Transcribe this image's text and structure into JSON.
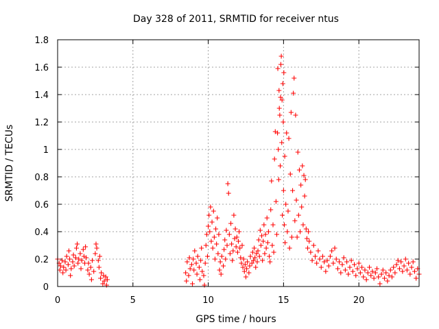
{
  "chart_data": {
    "type": "scatter",
    "title": "Day 328 of 2011, SRMTID for receiver ntus",
    "xlabel": "GPS time / hours",
    "ylabel": "SRMTID / TECUs",
    "xlim": [
      0,
      24
    ],
    "ylim": [
      0,
      1.8
    ],
    "xticks": [
      0,
      5,
      10,
      15,
      20
    ],
    "xtick_labels": [
      "0",
      "5",
      "10",
      "15",
      "20"
    ],
    "yticks": [
      0,
      0.2,
      0.4,
      0.6,
      0.8,
      1,
      1.2,
      1.4,
      1.6,
      1.8
    ],
    "ytick_labels": [
      "0",
      "0.2",
      "0.4",
      "0.6",
      "0.8",
      "1",
      "1.2",
      "1.4",
      "1.6",
      "1.8"
    ],
    "grid": true,
    "marker": "plus",
    "color": "#ff0000",
    "series": [
      {
        "name": "SRMTID",
        "points": [
          [
            0.0,
            0.2
          ],
          [
            0.1,
            0.17
          ],
          [
            0.15,
            0.12
          ],
          [
            0.2,
            0.15
          ],
          [
            0.3,
            0.19
          ],
          [
            0.35,
            0.1
          ],
          [
            0.4,
            0.14
          ],
          [
            0.5,
            0.18
          ],
          [
            0.55,
            0.12
          ],
          [
            0.6,
            0.22
          ],
          [
            0.7,
            0.16
          ],
          [
            0.75,
            0.26
          ],
          [
            0.8,
            0.2
          ],
          [
            0.85,
            0.08
          ],
          [
            0.9,
            0.13
          ],
          [
            1.0,
            0.18
          ],
          [
            1.05,
            0.23
          ],
          [
            1.1,
            0.15
          ],
          [
            1.2,
            0.21
          ],
          [
            1.25,
            0.28
          ],
          [
            1.3,
            0.31
          ],
          [
            1.35,
            0.17
          ],
          [
            1.4,
            0.2
          ],
          [
            1.5,
            0.24
          ],
          [
            1.55,
            0.13
          ],
          [
            1.6,
            0.19
          ],
          [
            1.7,
            0.27
          ],
          [
            1.75,
            0.22
          ],
          [
            1.8,
            0.17
          ],
          [
            1.85,
            0.29
          ],
          [
            1.9,
            0.21
          ],
          [
            2.0,
            0.12
          ],
          [
            2.05,
            0.17
          ],
          [
            2.1,
            0.09
          ],
          [
            2.2,
            0.14
          ],
          [
            2.25,
            0.05
          ],
          [
            2.3,
            0.19
          ],
          [
            2.4,
            0.11
          ],
          [
            2.5,
            0.24
          ],
          [
            2.55,
            0.31
          ],
          [
            2.6,
            0.28
          ],
          [
            2.7,
            0.19
          ],
          [
            2.75,
            0.14
          ],
          [
            2.8,
            0.22
          ],
          [
            2.85,
            0.06
          ],
          [
            2.9,
            0.1
          ],
          [
            3.0,
            0.02
          ],
          [
            3.05,
            0.08
          ],
          [
            3.1,
            0.04
          ],
          [
            3.2,
            0.07
          ],
          [
            3.25,
            0.01
          ],
          [
            3.3,
            0.05
          ],
          [
            8.5,
            0.1
          ],
          [
            8.55,
            0.04
          ],
          [
            8.6,
            0.18
          ],
          [
            8.7,
            0.08
          ],
          [
            8.75,
            0.21
          ],
          [
            8.8,
            0.13
          ],
          [
            8.9,
            0.16
          ],
          [
            8.95,
            0.02
          ],
          [
            9.0,
            0.2
          ],
          [
            9.05,
            0.12
          ],
          [
            9.1,
            0.26
          ],
          [
            9.2,
            0.17
          ],
          [
            9.25,
            0.09
          ],
          [
            9.3,
            0.22
          ],
          [
            9.4,
            0.14
          ],
          [
            9.45,
            0.05
          ],
          [
            9.5,
            0.19
          ],
          [
            9.55,
            0.28
          ],
          [
            9.6,
            0.11
          ],
          [
            9.7,
            0.08
          ],
          [
            9.75,
            0.01
          ],
          [
            9.8,
            0.17
          ],
          [
            9.85,
            0.3
          ],
          [
            9.9,
            0.38
          ],
          [
            9.95,
            0.22
          ],
          [
            10.0,
            0.44
          ],
          [
            10.05,
            0.52
          ],
          [
            10.1,
            0.4
          ],
          [
            10.15,
            0.58
          ],
          [
            10.2,
            0.33
          ],
          [
            10.25,
            0.47
          ],
          [
            10.3,
            0.28
          ],
          [
            10.35,
            0.55
          ],
          [
            10.4,
            0.36
          ],
          [
            10.45,
            0.2
          ],
          [
            10.5,
            0.42
          ],
          [
            10.55,
            0.31
          ],
          [
            10.6,
            0.5
          ],
          [
            10.65,
            0.24
          ],
          [
            10.7,
            0.38
          ],
          [
            10.75,
            0.12
          ],
          [
            10.8,
            0.18
          ],
          [
            10.85,
            0.09
          ],
          [
            10.9,
            0.22
          ],
          [
            11.0,
            0.15
          ],
          [
            11.05,
            0.27
          ],
          [
            11.1,
            0.34
          ],
          [
            11.15,
            0.2
          ],
          [
            11.2,
            0.41
          ],
          [
            11.25,
            0.3
          ],
          [
            11.3,
            0.75
          ],
          [
            11.35,
            0.68
          ],
          [
            11.4,
            0.38
          ],
          [
            11.45,
            0.24
          ],
          [
            11.5,
            0.46
          ],
          [
            11.55,
            0.31
          ],
          [
            11.6,
            0.19
          ],
          [
            11.65,
            0.26
          ],
          [
            11.7,
            0.52
          ],
          [
            11.75,
            0.35
          ],
          [
            11.8,
            0.42
          ],
          [
            11.85,
            0.29
          ],
          [
            11.9,
            0.36
          ],
          [
            11.95,
            0.25
          ],
          [
            12.0,
            0.33
          ],
          [
            12.05,
            0.4
          ],
          [
            12.1,
            0.28
          ],
          [
            12.15,
            0.21
          ],
          [
            12.2,
            0.17
          ],
          [
            12.25,
            0.3
          ],
          [
            12.3,
            0.14
          ],
          [
            12.35,
            0.2
          ],
          [
            12.4,
            0.11
          ],
          [
            12.45,
            0.16
          ],
          [
            12.5,
            0.07
          ],
          [
            12.55,
            0.13
          ],
          [
            12.6,
            0.18
          ],
          [
            12.7,
            0.1
          ],
          [
            12.75,
            0.15
          ],
          [
            12.8,
            0.22
          ],
          [
            12.9,
            0.17
          ],
          [
            12.95,
            0.25
          ],
          [
            13.0,
            0.19
          ],
          [
            13.05,
            0.28
          ],
          [
            13.1,
            0.21
          ],
          [
            13.15,
            0.14
          ],
          [
            13.2,
            0.24
          ],
          [
            13.25,
            0.18
          ],
          [
            13.3,
            0.26
          ],
          [
            13.35,
            0.34
          ],
          [
            13.4,
            0.22
          ],
          [
            13.45,
            0.41
          ],
          [
            13.5,
            0.3
          ],
          [
            13.55,
            0.37
          ],
          [
            13.6,
            0.19
          ],
          [
            13.65,
            0.33
          ],
          [
            13.7,
            0.45
          ],
          [
            13.75,
            0.24
          ],
          [
            13.8,
            0.38
          ],
          [
            13.85,
            0.28
          ],
          [
            13.9,
            0.5
          ],
          [
            13.95,
            0.32
          ],
          [
            14.0,
            0.4
          ],
          [
            14.05,
            0.22
          ],
          [
            14.1,
            0.18
          ],
          [
            14.15,
            0.56
          ],
          [
            14.2,
            0.77
          ],
          [
            14.25,
            0.3
          ],
          [
            14.3,
            0.45
          ],
          [
            14.35,
            0.25
          ],
          [
            14.4,
            0.93
          ],
          [
            14.45,
            1.13
          ],
          [
            14.5,
            0.62
          ],
          [
            14.55,
            0.38
          ],
          [
            14.6,
            1.12
          ],
          [
            14.62,
            1.59
          ],
          [
            14.65,
            1.0
          ],
          [
            14.68,
            0.78
          ],
          [
            14.7,
            1.43
          ],
          [
            14.72,
            1.3
          ],
          [
            14.75,
            1.25
          ],
          [
            14.78,
            0.88
          ],
          [
            14.8,
            1.38
          ],
          [
            14.82,
            1.62
          ],
          [
            14.85,
            1.68
          ],
          [
            14.88,
            1.05
          ],
          [
            14.9,
            1.36
          ],
          [
            14.92,
            0.52
          ],
          [
            14.95,
            1.48
          ],
          [
            14.98,
            1.2
          ],
          [
            15.0,
            0.7
          ],
          [
            15.02,
            1.56
          ],
          [
            15.05,
            0.45
          ],
          [
            15.08,
            0.95
          ],
          [
            15.1,
            0.32
          ],
          [
            15.15,
            0.6
          ],
          [
            15.2,
            1.12
          ],
          [
            15.25,
            0.4
          ],
          [
            15.3,
            0.55
          ],
          [
            15.35,
            1.08
          ],
          [
            15.4,
            0.28
          ],
          [
            15.45,
            0.82
          ],
          [
            15.5,
            1.27
          ],
          [
            15.55,
            0.36
          ],
          [
            15.6,
            0.7
          ],
          [
            15.65,
            1.41
          ],
          [
            15.7,
            1.52
          ],
          [
            15.75,
            0.48
          ],
          [
            15.8,
            1.25
          ],
          [
            15.85,
            0.63
          ],
          [
            15.9,
            0.36
          ],
          [
            15.95,
            0.98
          ],
          [
            16.0,
            0.52
          ],
          [
            16.05,
            0.85
          ],
          [
            16.1,
            0.4
          ],
          [
            16.15,
            0.74
          ],
          [
            16.2,
            0.58
          ],
          [
            16.25,
            0.88
          ],
          [
            16.3,
            0.45
          ],
          [
            16.35,
            0.81
          ],
          [
            16.4,
            0.66
          ],
          [
            16.45,
            0.78
          ],
          [
            16.5,
            0.42
          ],
          [
            16.55,
            0.35
          ],
          [
            16.6,
            0.28
          ],
          [
            16.65,
            0.4
          ],
          [
            16.7,
            0.33
          ],
          [
            16.8,
            0.25
          ],
          [
            16.9,
            0.19
          ],
          [
            17.0,
            0.3
          ],
          [
            17.1,
            0.22
          ],
          [
            17.2,
            0.17
          ],
          [
            17.3,
            0.26
          ],
          [
            17.4,
            0.2
          ],
          [
            17.5,
            0.14
          ],
          [
            17.6,
            0.22
          ],
          [
            17.7,
            0.18
          ],
          [
            17.8,
            0.11
          ],
          [
            17.9,
            0.19
          ],
          [
            18.0,
            0.15
          ],
          [
            18.1,
            0.22
          ],
          [
            18.2,
            0.26
          ],
          [
            18.3,
            0.17
          ],
          [
            18.4,
            0.28
          ],
          [
            18.5,
            0.2
          ],
          [
            18.6,
            0.13
          ],
          [
            18.7,
            0.18
          ],
          [
            18.8,
            0.1
          ],
          [
            18.9,
            0.16
          ],
          [
            19.0,
            0.21
          ],
          [
            19.1,
            0.12
          ],
          [
            19.2,
            0.18
          ],
          [
            19.3,
            0.09
          ],
          [
            19.4,
            0.14
          ],
          [
            19.5,
            0.19
          ],
          [
            19.6,
            0.11
          ],
          [
            19.7,
            0.16
          ],
          [
            19.8,
            0.08
          ],
          [
            19.9,
            0.13
          ],
          [
            20.0,
            0.17
          ],
          [
            20.1,
            0.1
          ],
          [
            20.2,
            0.14
          ],
          [
            20.3,
            0.07
          ],
          [
            20.4,
            0.12
          ],
          [
            20.5,
            0.05
          ],
          [
            20.6,
            0.1
          ],
          [
            20.7,
            0.14
          ],
          [
            20.8,
            0.08
          ],
          [
            20.9,
            0.11
          ],
          [
            21.0,
            0.06
          ],
          [
            21.1,
            0.1
          ],
          [
            21.2,
            0.13
          ],
          [
            21.3,
            0.07
          ],
          [
            21.4,
            0.02
          ],
          [
            21.5,
            0.09
          ],
          [
            21.6,
            0.12
          ],
          [
            21.7,
            0.06
          ],
          [
            21.8,
            0.1
          ],
          [
            21.9,
            0.04
          ],
          [
            22.0,
            0.08
          ],
          [
            22.1,
            0.12
          ],
          [
            22.2,
            0.07
          ],
          [
            22.3,
            0.14
          ],
          [
            22.4,
            0.1
          ],
          [
            22.5,
            0.16
          ],
          [
            22.6,
            0.19
          ],
          [
            22.7,
            0.13
          ],
          [
            22.8,
            0.18
          ],
          [
            22.9,
            0.11
          ],
          [
            23.0,
            0.15
          ],
          [
            23.1,
            0.2
          ],
          [
            23.2,
            0.12
          ],
          [
            23.3,
            0.17
          ],
          [
            23.4,
            0.09
          ],
          [
            23.5,
            0.14
          ],
          [
            23.6,
            0.18
          ],
          [
            23.7,
            0.11
          ],
          [
            23.8,
            0.06
          ],
          [
            23.9,
            0.13
          ],
          [
            24.0,
            0.09
          ]
        ]
      }
    ]
  }
}
